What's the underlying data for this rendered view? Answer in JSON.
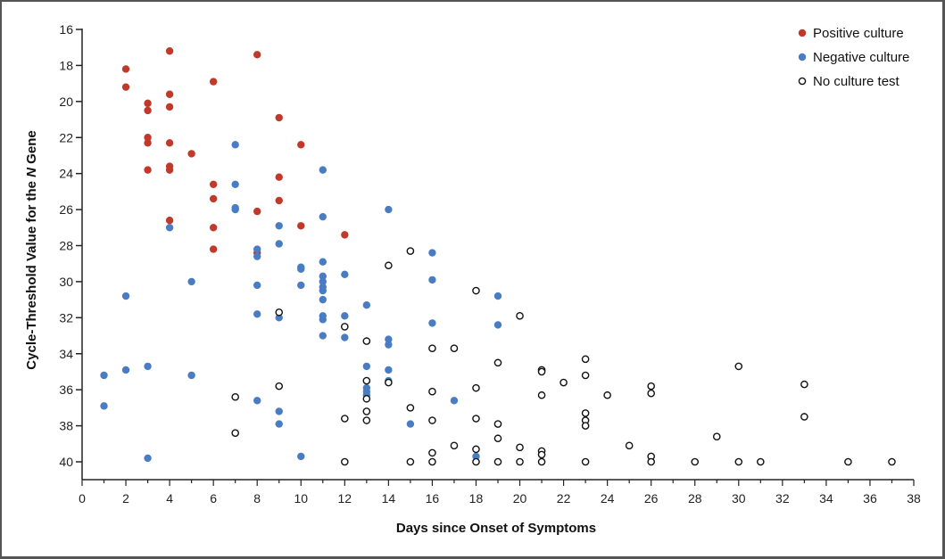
{
  "chart_data": {
    "type": "scatter",
    "xlabel": "Days since Onset of Symptoms",
    "ylabel_parts": [
      "Cycle-Threshold Value for the ",
      "N",
      " Gene"
    ],
    "xlim": [
      0,
      38
    ],
    "ylim": [
      41,
      16
    ],
    "y_inverted": true,
    "xticks": [
      0,
      2,
      4,
      6,
      8,
      10,
      12,
      14,
      16,
      18,
      20,
      22,
      24,
      26,
      28,
      30,
      32,
      34,
      36,
      38
    ],
    "yticks": [
      16,
      18,
      20,
      22,
      24,
      26,
      28,
      30,
      32,
      34,
      36,
      38,
      40
    ],
    "grid": false,
    "legend_position": "top-right",
    "series": [
      {
        "name": "Positive culture",
        "color": "#c0392b",
        "marker": "filled-circle",
        "points": [
          [
            2,
            18.2
          ],
          [
            2,
            19.2
          ],
          [
            3,
            20.1
          ],
          [
            3,
            20.5
          ],
          [
            3,
            22.0
          ],
          [
            3,
            22.3
          ],
          [
            3,
            23.8
          ],
          [
            4,
            17.2
          ],
          [
            4,
            19.6
          ],
          [
            4,
            20.3
          ],
          [
            4,
            22.3
          ],
          [
            4,
            23.6
          ],
          [
            4,
            23.8
          ],
          [
            4,
            26.6
          ],
          [
            5,
            22.9
          ],
          [
            6,
            18.9
          ],
          [
            6,
            24.6
          ],
          [
            6,
            25.4
          ],
          [
            6,
            27.0
          ],
          [
            6,
            28.2
          ],
          [
            8,
            17.4
          ],
          [
            8,
            26.1
          ],
          [
            8,
            28.4
          ],
          [
            9,
            20.9
          ],
          [
            9,
            24.2
          ],
          [
            9,
            25.5
          ],
          [
            10,
            22.4
          ],
          [
            10,
            26.9
          ],
          [
            12,
            27.4
          ]
        ]
      },
      {
        "name": "Negative culture",
        "color": "#4a7cc4",
        "marker": "filled-circle",
        "points": [
          [
            1,
            35.2
          ],
          [
            1,
            36.9
          ],
          [
            2,
            30.8
          ],
          [
            2,
            34.9
          ],
          [
            3,
            34.7
          ],
          [
            3,
            39.8
          ],
          [
            4,
            27.0
          ],
          [
            5,
            30.0
          ],
          [
            5,
            35.2
          ],
          [
            7,
            22.4
          ],
          [
            7,
            24.6
          ],
          [
            7,
            25.9
          ],
          [
            7,
            26.0
          ],
          [
            8,
            28.2
          ],
          [
            8,
            28.6
          ],
          [
            8,
            30.2
          ],
          [
            8,
            31.8
          ],
          [
            8,
            36.6
          ],
          [
            9,
            26.9
          ],
          [
            9,
            27.9
          ],
          [
            9,
            32.0
          ],
          [
            9,
            37.2
          ],
          [
            9,
            37.9
          ],
          [
            10,
            29.2
          ],
          [
            10,
            29.3
          ],
          [
            10,
            30.2
          ],
          [
            10,
            39.7
          ],
          [
            11,
            23.8
          ],
          [
            11,
            26.4
          ],
          [
            11,
            28.9
          ],
          [
            11,
            29.7
          ],
          [
            11,
            30.0
          ],
          [
            11,
            30.3
          ],
          [
            11,
            30.5
          ],
          [
            11,
            31.0
          ],
          [
            11,
            31.9
          ],
          [
            11,
            32.1
          ],
          [
            11,
            33.0
          ],
          [
            12,
            29.6
          ],
          [
            12,
            31.9
          ],
          [
            12,
            33.1
          ],
          [
            13,
            31.3
          ],
          [
            13,
            34.7
          ],
          [
            13,
            35.9
          ],
          [
            13,
            36.1
          ],
          [
            13,
            36.3
          ],
          [
            14,
            26.0
          ],
          [
            14,
            33.2
          ],
          [
            14,
            33.5
          ],
          [
            14,
            34.9
          ],
          [
            14,
            35.5
          ],
          [
            15,
            37.9
          ],
          [
            16,
            28.4
          ],
          [
            16,
            29.9
          ],
          [
            16,
            32.3
          ],
          [
            17,
            36.6
          ],
          [
            18,
            39.7
          ],
          [
            19,
            30.8
          ],
          [
            19,
            32.4
          ]
        ]
      },
      {
        "name": "No culture test",
        "color": "#111111",
        "marker": "open-circle",
        "points": [
          [
            7,
            36.4
          ],
          [
            7,
            38.4
          ],
          [
            9,
            31.7
          ],
          [
            9,
            35.8
          ],
          [
            12,
            32.5
          ],
          [
            12,
            37.6
          ],
          [
            12,
            40.0
          ],
          [
            13,
            33.3
          ],
          [
            13,
            35.5
          ],
          [
            13,
            36.5
          ],
          [
            13,
            37.2
          ],
          [
            13,
            37.7
          ],
          [
            14,
            29.1
          ],
          [
            14,
            35.6
          ],
          [
            15,
            28.3
          ],
          [
            15,
            37.0
          ],
          [
            15,
            40.0
          ],
          [
            16,
            33.7
          ],
          [
            16,
            36.1
          ],
          [
            16,
            37.7
          ],
          [
            16,
            39.5
          ],
          [
            16,
            40.0
          ],
          [
            17,
            33.7
          ],
          [
            17,
            39.1
          ],
          [
            18,
            30.5
          ],
          [
            18,
            35.9
          ],
          [
            18,
            37.6
          ],
          [
            18,
            39.3
          ],
          [
            18,
            40.0
          ],
          [
            19,
            34.5
          ],
          [
            19,
            37.9
          ],
          [
            19,
            38.7
          ],
          [
            19,
            40.0
          ],
          [
            20,
            31.9
          ],
          [
            20,
            39.2
          ],
          [
            20,
            40.0
          ],
          [
            21,
            34.9
          ],
          [
            21,
            35.0
          ],
          [
            21,
            36.3
          ],
          [
            21,
            39.4
          ],
          [
            21,
            39.6
          ],
          [
            21,
            40.0
          ],
          [
            22,
            35.6
          ],
          [
            23,
            34.3
          ],
          [
            23,
            35.2
          ],
          [
            23,
            37.3
          ],
          [
            23,
            37.7
          ],
          [
            23,
            38.0
          ],
          [
            23,
            40.0
          ],
          [
            24,
            36.3
          ],
          [
            25,
            39.1
          ],
          [
            26,
            35.8
          ],
          [
            26,
            36.2
          ],
          [
            26,
            39.7
          ],
          [
            26,
            40.0
          ],
          [
            28,
            40.0
          ],
          [
            29,
            38.6
          ],
          [
            30,
            34.7
          ],
          [
            30,
            40.0
          ],
          [
            31,
            40.0
          ],
          [
            33,
            35.7
          ],
          [
            33,
            37.5
          ],
          [
            35,
            40.0
          ],
          [
            37,
            40.0
          ]
        ]
      }
    ]
  }
}
